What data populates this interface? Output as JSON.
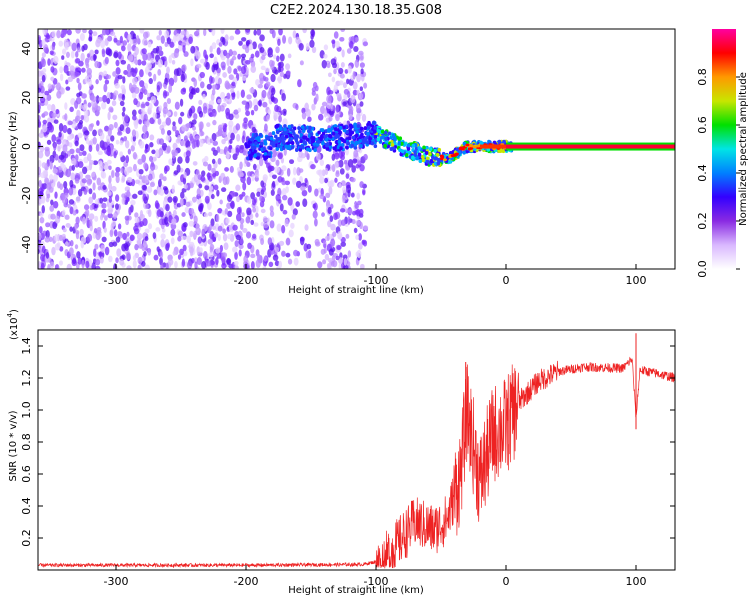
{
  "title": "C2E2.2024.130.18.35.G08",
  "chart_data": [
    {
      "type": "heatmap",
      "xlabel": "Height of straight line (km)",
      "ylabel": "Frequency (Hz)",
      "xlim": [
        -360,
        130
      ],
      "ylim": [
        -50,
        48
      ],
      "xticks": [
        -300,
        -200,
        -100,
        0,
        100
      ],
      "yticks": [
        -40,
        -20,
        0,
        20,
        40
      ],
      "colorbar": {
        "label": "Normalized spectral amplitude",
        "range": [
          0.0,
          1.0
        ],
        "ticks": [
          "0.0",
          "0.2",
          "0.4",
          "0.6",
          "0.8"
        ],
        "colors": [
          "#ffffff",
          "#d9b8ff",
          "#8a2be2",
          "#3300ff",
          "#0080ff",
          "#00e5e5",
          "#00e000",
          "#c8e600",
          "#ff9900",
          "#ff0000",
          "#ff00a0"
        ]
      },
      "band_center_hz": [
        {
          "x": -180,
          "y": 4
        },
        {
          "x": -140,
          "y": 3
        },
        {
          "x": -100,
          "y": 5
        },
        {
          "x": -80,
          "y": 0
        },
        {
          "x": -60,
          "y": -4
        },
        {
          "x": -45,
          "y": -5
        },
        {
          "x": -30,
          "y": 0
        },
        {
          "x": -10,
          "y": 0
        },
        {
          "x": 0,
          "y": 0
        },
        {
          "x": 130,
          "y": 0
        }
      ],
      "noise_region_x": [
        -360,
        -108
      ],
      "steady_line_x": [
        0,
        130
      ]
    },
    {
      "type": "line",
      "xlabel": "Height of straight line (km)",
      "ylabel": "SNR (10 * v/v)",
      "y_scale_label": "(x10",
      "y_scale_exponent": "4",
      "xlim": [
        -360,
        130
      ],
      "ylim": [
        0,
        1.5
      ],
      "xticks": [
        -300,
        -200,
        -100,
        0,
        100
      ],
      "yticks": [
        "0.2",
        "0.4",
        "0.6",
        "0.8",
        "1.0",
        "1.2",
        "1.4"
      ],
      "line_color": "#ee2222",
      "points": [
        {
          "x": -360,
          "y": 0.03
        },
        {
          "x": -200,
          "y": 0.03
        },
        {
          "x": -110,
          "y": 0.035
        },
        {
          "x": -95,
          "y": 0.06
        },
        {
          "x": -85,
          "y": 0.15
        },
        {
          "x": -70,
          "y": 0.3
        },
        {
          "x": -55,
          "y": 0.25
        },
        {
          "x": -45,
          "y": 0.32
        },
        {
          "x": -35,
          "y": 0.6
        },
        {
          "x": -30,
          "y": 1.0
        },
        {
          "x": -20,
          "y": 0.55
        },
        {
          "x": -10,
          "y": 0.85
        },
        {
          "x": 0,
          "y": 0.9
        },
        {
          "x": 10,
          "y": 1.05
        },
        {
          "x": 25,
          "y": 1.18
        },
        {
          "x": 40,
          "y": 1.24
        },
        {
          "x": 60,
          "y": 1.27
        },
        {
          "x": 90,
          "y": 1.26
        },
        {
          "x": 97,
          "y": 1.32
        },
        {
          "x": 100,
          "y": 0.95
        },
        {
          "x": 103,
          "y": 1.25
        },
        {
          "x": 115,
          "y": 1.23
        },
        {
          "x": 130,
          "y": 1.2
        }
      ],
      "spikes": [
        {
          "x": -31,
          "y": 1.3
        },
        {
          "x": 100,
          "y": 1.48
        },
        {
          "x": 100,
          "y": 0.88
        }
      ]
    }
  ]
}
